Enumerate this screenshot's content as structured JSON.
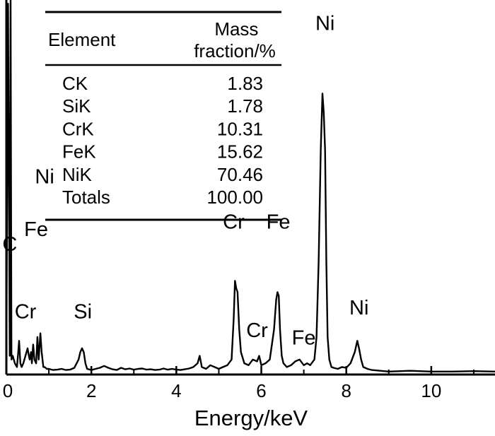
{
  "chart_data": {
    "type": "line",
    "title": "",
    "xlabel": "Energy/keV",
    "ylabel": "",
    "xlim": [
      0,
      11.5
    ],
    "ylim": [
      0,
      100
    ],
    "grid": false,
    "x_ticks": [
      "0",
      "2",
      "4",
      "6",
      "8",
      "10"
    ],
    "x_tick_values": [
      0,
      2,
      4,
      6,
      8,
      10
    ],
    "series": [
      {
        "name": "",
        "x": [
          0,
          0.04,
          0.08,
          0.1,
          0.12,
          0.15,
          0.2,
          0.25,
          0.28,
          0.3,
          0.33,
          0.36,
          0.4,
          0.45,
          0.5,
          0.53,
          0.55,
          0.58,
          0.6,
          0.63,
          0.66,
          0.7,
          0.73,
          0.76,
          0.8,
          0.83,
          0.85,
          0.87,
          0.9,
          0.95,
          1.0,
          1.1,
          1.2,
          1.3,
          1.4,
          1.5,
          1.6,
          1.7,
          1.74,
          1.78,
          1.82,
          1.86,
          1.9,
          2.0,
          2.1,
          2.2,
          2.3,
          2.4,
          2.5,
          2.6,
          2.7,
          2.8,
          2.9,
          3.0,
          3.1,
          3.2,
          3.3,
          3.4,
          3.5,
          3.6,
          3.7,
          3.8,
          3.9,
          4.0,
          4.1,
          4.2,
          4.3,
          4.4,
          4.5,
          4.55,
          4.6,
          4.7,
          4.8,
          4.9,
          5.0,
          5.1,
          5.2,
          5.3,
          5.35,
          5.38,
          5.41,
          5.44,
          5.48,
          5.52,
          5.6,
          5.7,
          5.8,
          5.9,
          5.95,
          6.0,
          6.1,
          6.2,
          6.3,
          6.35,
          6.38,
          6.41,
          6.44,
          6.48,
          6.52,
          6.6,
          6.7,
          6.8,
          6.9,
          7.0,
          7.08,
          7.15,
          7.25,
          7.3,
          7.35,
          7.4,
          7.44,
          7.47,
          7.5,
          7.53,
          7.56,
          7.6,
          7.65,
          7.7,
          7.8,
          7.9,
          8.0,
          8.1,
          8.2,
          8.26,
          8.3,
          8.35,
          8.4,
          8.5,
          8.6,
          8.8,
          9.0,
          9.5,
          10.0,
          10.5,
          11.0,
          11.5
        ],
        "y": [
          2,
          99,
          5,
          100,
          4,
          5,
          3,
          2,
          6,
          9,
          3,
          2,
          3,
          5,
          7,
          5,
          4,
          6,
          3,
          8,
          4,
          3,
          10,
          4,
          11,
          6,
          4,
          2,
          2,
          1.5,
          1.5,
          1.2,
          1.3,
          1.5,
          1.2,
          1.3,
          1.8,
          4,
          6,
          7,
          6,
          3,
          1.5,
          1.2,
          1.5,
          1.8,
          2.3,
          1.8,
          1.4,
          1.2,
          1.8,
          1.4,
          1.6,
          1.3,
          1.5,
          1.6,
          1.3,
          1.4,
          1.2,
          1.3,
          1.6,
          1.3,
          1.5,
          1.3,
          1.2,
          1.4,
          1.6,
          2,
          3,
          5,
          2,
          1.5,
          2.5,
          2,
          1.5,
          2,
          2.5,
          4,
          15,
          25,
          23,
          22,
          12,
          6,
          3,
          2.5,
          4,
          3.5,
          5,
          2.5,
          3,
          4,
          12,
          20,
          22,
          21,
          12,
          5,
          3,
          2,
          2.5,
          3.5,
          4,
          2.5,
          3,
          2.5,
          4,
          10,
          30,
          60,
          75,
          70,
          60,
          30,
          10,
          4,
          2,
          1.8,
          1.5,
          2,
          1.8,
          3,
          6,
          9,
          7,
          4,
          2,
          1.5,
          1.2,
          1,
          0.8,
          1,
          0.8,
          0.8,
          0.9,
          0.8
        ]
      }
    ],
    "peak_labels": [
      "C",
      "Cr",
      "Fe",
      "Ni",
      "Si",
      "Cr",
      "Cr",
      "Fe",
      "Fe",
      "Ni",
      "Ni"
    ],
    "peak_label_x": [
      0.08,
      0.45,
      0.7,
      0.9,
      1.8,
      5.35,
      5.9,
      6.4,
      7.0,
      7.5,
      8.3
    ],
    "peak_label_y": [
      33,
      15,
      37,
      51,
      15,
      39,
      10,
      39,
      8,
      92,
      16
    ],
    "table": {
      "headers": [
        "Element",
        "Mass\nfraction/%"
      ],
      "rows": [
        [
          "CK",
          "1.83"
        ],
        [
          "SiK",
          "1.78"
        ],
        [
          "CrK",
          "10.31"
        ],
        [
          "FeK",
          "15.62"
        ],
        [
          "NiK",
          "70.46"
        ],
        [
          "Totals",
          "100.00"
        ]
      ]
    }
  }
}
